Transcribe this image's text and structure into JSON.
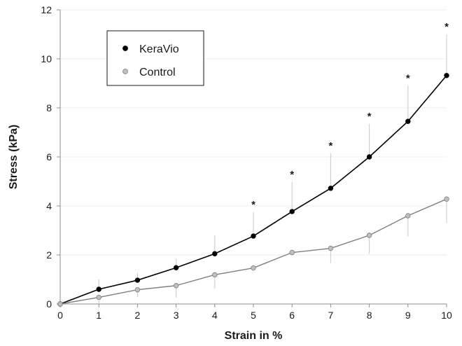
{
  "chart_data": {
    "type": "line",
    "xlabel": "Strain in %",
    "ylabel": "Stress (kPa)",
    "xlim": [
      0,
      10
    ],
    "ylim": [
      0,
      12
    ],
    "x_ticks": [
      0,
      1,
      2,
      3,
      4,
      5,
      6,
      7,
      8,
      9,
      10
    ],
    "y_ticks": [
      0,
      2,
      4,
      6,
      8,
      10,
      12
    ],
    "grid": "horizontal",
    "legend_position": "top-left",
    "x": [
      0,
      1,
      2,
      3,
      4,
      5,
      6,
      7,
      8,
      9,
      10
    ],
    "series": [
      {
        "name": "KeraVio",
        "color": "#000000",
        "marker_fill": "#000000",
        "values": [
          0,
          0.6,
          0.97,
          1.48,
          2.05,
          2.77,
          3.77,
          4.72,
          6.0,
          7.45,
          9.32
        ],
        "error_upper": [
          0,
          0.4,
          0.3,
          0.37,
          0.75,
          0.98,
          1.2,
          1.43,
          1.35,
          1.45,
          1.68
        ]
      },
      {
        "name": "Control",
        "color": "#7f7f7f",
        "marker_fill": "#bfbfbf",
        "values": [
          0,
          0.27,
          0.58,
          0.75,
          1.19,
          1.47,
          2.1,
          2.27,
          2.8,
          3.6,
          4.28
        ],
        "error_lower": [
          0,
          0.27,
          0.3,
          0.5,
          0.55,
          0.0,
          0.0,
          0.6,
          0.75,
          0.85,
          0.98
        ]
      }
    ],
    "significance": {
      "symbol": "*",
      "x": [
        5,
        6,
        7,
        8,
        9,
        10
      ]
    }
  }
}
